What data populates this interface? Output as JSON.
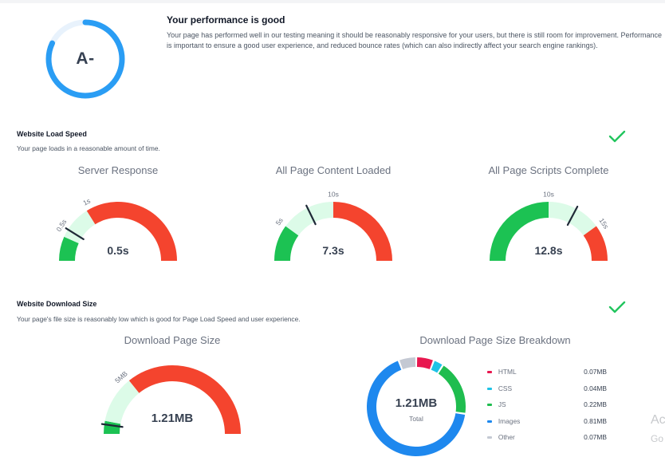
{
  "performance": {
    "grade": "A-",
    "grade_score": 0.82,
    "title": "Your performance is good",
    "description": "Your page has performed well in our testing meaning it should be reasonably responsive for your users, but there is still room for improvement. Performance is important to ensure a good user experience, and reduced bounce rates (which can also indirectly affect your search engine rankings)."
  },
  "load_speed": {
    "title": "Website Load Speed",
    "subtitle": "Your page loads in a reasonable amount of time.",
    "status_icon": "check-icon",
    "gauges": [
      {
        "title": "Server Response",
        "value_label": "0.5s",
        "ticks": [
          "0.5s",
          "1s"
        ]
      },
      {
        "title": "All Page Content Loaded",
        "value_label": "7.3s",
        "ticks": [
          "5s",
          "10s"
        ]
      },
      {
        "title": "All Page Scripts Complete",
        "value_label": "12.8s",
        "ticks": [
          "10s",
          "15s"
        ]
      }
    ]
  },
  "download_size": {
    "title": "Website Download Size",
    "subtitle": "Your page's file size is reasonably low which is good for Page Load Speed and user experience.",
    "status_icon": "check-icon",
    "gauge": {
      "title": "Download Page Size",
      "value_label": "1.21MB",
      "ticks": [
        "5MB"
      ]
    },
    "breakdown": {
      "title": "Download Page Size Breakdown",
      "total_value": "1.21MB",
      "total_label": "Total",
      "items": [
        {
          "label": "HTML",
          "size": "0.07MB",
          "value": 0.07,
          "color": "#e8174f"
        },
        {
          "label": "CSS",
          "size": "0.04MB",
          "value": 0.04,
          "color": "#1ec3e6"
        },
        {
          "label": "JS",
          "size": "0.22MB",
          "value": 0.22,
          "color": "#1fbd4f"
        },
        {
          "label": "Images",
          "size": "0.81MB",
          "value": 0.81,
          "color": "#1e88ee"
        },
        {
          "label": "Other",
          "size": "0.07MB",
          "value": 0.07,
          "color": "#c4c9d3"
        }
      ]
    }
  },
  "colors": {
    "green": "#1cc253",
    "light_green": "#dcfbe8",
    "red": "#f4442e",
    "blue": "#2a9df4",
    "check": "#22c55e",
    "needle": "#1f2937"
  },
  "overlay": {
    "line1": "Ac",
    "line2": "Go"
  }
}
